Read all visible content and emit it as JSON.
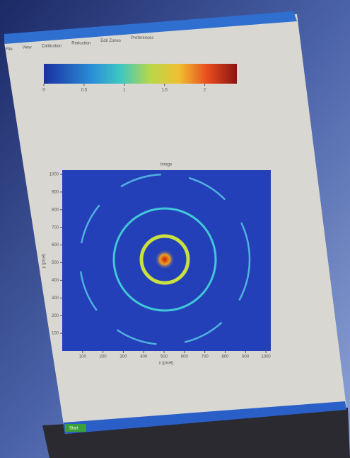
{
  "menu": [
    "File",
    "View",
    "Calibration",
    "Reduction",
    "Edit Zones",
    "Preferences"
  ],
  "colorbar": {
    "lim": [
      0,
      2.4
    ],
    "ticks": [
      0,
      0.5,
      1,
      1.5,
      2
    ]
  },
  "chart_data": {
    "type": "image",
    "title": "Image",
    "xlabel": "x (pixel)",
    "ylabel": "y (pixel)",
    "xlim": [
      0,
      1024
    ],
    "ylim": [
      0,
      1024
    ],
    "xticks": [
      100,
      200,
      300,
      400,
      500,
      600,
      700,
      800,
      900,
      1000
    ],
    "yticks": [
      100,
      200,
      300,
      400,
      500,
      600,
      700,
      800,
      900,
      1000
    ]
  },
  "taskbar": {
    "start": "Start"
  }
}
